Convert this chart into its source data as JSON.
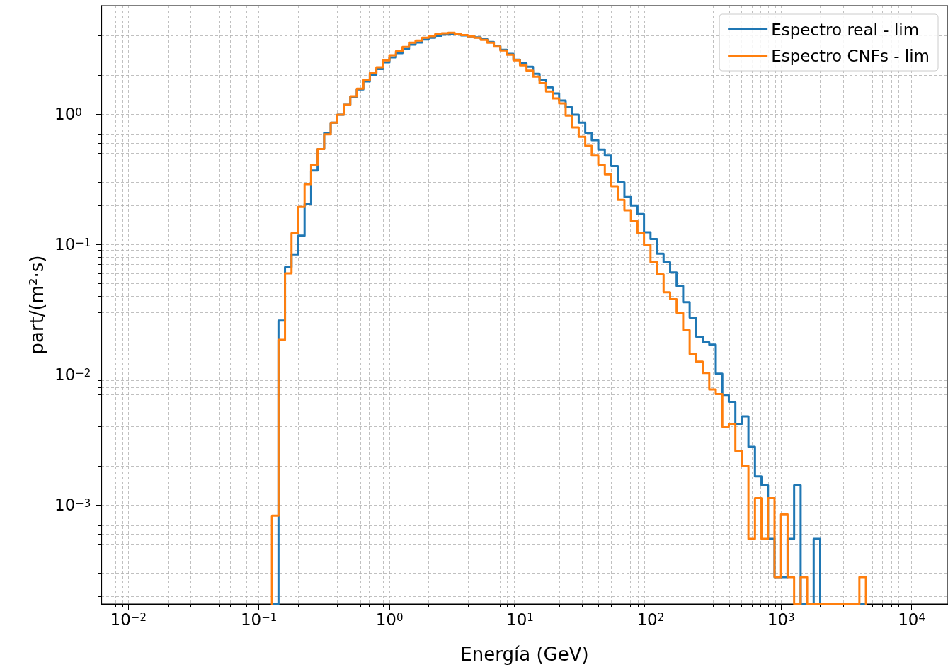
{
  "chart_data": {
    "type": "histogram",
    "xlabel": "Energía (GeV)",
    "ylabel": "part/(m²·s)",
    "bins": [
      0.1259,
      0.1413,
      0.1585,
      0.1778,
      0.1995,
      0.2239,
      0.2512,
      0.2818,
      0.3162,
      0.3548,
      0.3981,
      0.4467,
      0.5012,
      0.5623,
      0.631,
      0.7079,
      0.7943,
      0.8913,
      1,
      1.122,
      1.259,
      1.413,
      1.585,
      1.778,
      1.995,
      2.239,
      2.512,
      2.818,
      3.162,
      3.548,
      3.981,
      4.467,
      5.012,
      5.623,
      6.31,
      7.079,
      7.943,
      8.913,
      10,
      11.22,
      12.59,
      14.13,
      15.85,
      17.78,
      19.95,
      22.39,
      25.12,
      28.18,
      31.62,
      35.48,
      39.81,
      44.67,
      50.12,
      56.23,
      63.1,
      70.79,
      79.43,
      89.13,
      100,
      112.2,
      125.9,
      141.3,
      158.5,
      177.8,
      199.5,
      223.9,
      251.2,
      281.8,
      316.2,
      354.8,
      398.1,
      446.7,
      501.2,
      562.3,
      631,
      707.9,
      794.3,
      891.3,
      1000,
      1122,
      1259,
      1413,
      1585,
      1778,
      1995,
      2239,
      2512,
      2818,
      3162,
      3548,
      3981,
      4467
    ],
    "series": [
      {
        "name": "Espectro real - lim",
        "color": "#1f77b4",
        "values": [
          null,
          0.026,
          0.067,
          0.084,
          0.117,
          0.204,
          0.37,
          0.54,
          0.72,
          0.86,
          0.99,
          1.18,
          1.36,
          1.55,
          1.78,
          2.01,
          2.22,
          2.5,
          2.73,
          2.94,
          3.17,
          3.42,
          3.55,
          3.74,
          3.86,
          4.0,
          4.08,
          4.14,
          4.1,
          4.02,
          3.96,
          3.88,
          3.76,
          3.58,
          3.34,
          3.12,
          2.9,
          2.62,
          2.45,
          2.31,
          2.04,
          1.82,
          1.61,
          1.44,
          1.27,
          1.13,
          0.99,
          0.86,
          0.72,
          0.63,
          0.535,
          0.48,
          0.4,
          0.3,
          0.231,
          0.199,
          0.171,
          0.124,
          0.11,
          0.085,
          0.073,
          0.061,
          0.048,
          0.036,
          0.0275,
          0.0196,
          0.0178,
          0.017,
          0.0102,
          0.007,
          0.0062,
          0.0042,
          0.0048,
          0.0028,
          0.00166,
          0.00142,
          0.00055,
          0.00028,
          0.00028,
          0.00055,
          0.00142,
          null,
          null,
          0.00055,
          null,
          null,
          null,
          null,
          null,
          null,
          null
        ]
      },
      {
        "name": "Espectro CNFs - lim",
        "color": "#ff7f0e",
        "values": [
          0.00083,
          0.0185,
          0.06,
          0.122,
          0.194,
          0.29,
          0.41,
          0.54,
          0.7,
          0.86,
          0.99,
          1.18,
          1.37,
          1.57,
          1.82,
          2.07,
          2.29,
          2.59,
          2.83,
          3.04,
          3.28,
          3.54,
          3.67,
          3.86,
          3.97,
          4.11,
          4.17,
          4.22,
          4.14,
          4.04,
          3.96,
          3.86,
          3.72,
          3.54,
          3.3,
          3.08,
          2.86,
          2.59,
          2.37,
          2.16,
          1.94,
          1.73,
          1.49,
          1.32,
          1.21,
          0.975,
          0.79,
          0.67,
          0.57,
          0.48,
          0.41,
          0.345,
          0.28,
          0.22,
          0.183,
          0.151,
          0.123,
          0.099,
          0.073,
          0.059,
          0.043,
          0.038,
          0.03,
          0.022,
          0.0144,
          0.0126,
          0.0103,
          0.0077,
          0.0071,
          0.004,
          0.0042,
          0.0026,
          0.002,
          0.00055,
          0.00113,
          0.00055,
          0.00113,
          0.00028,
          0.00085,
          0.00028,
          null,
          0.00028,
          null,
          null,
          null,
          null,
          null,
          null,
          null,
          null,
          0.00028
        ]
      }
    ],
    "log": "xy",
    "xlim": [
      0.0062,
      19000
    ],
    "ylim": [
      0.000174,
      6.8
    ],
    "xticks": [
      {
        "value": 0.01,
        "label": "10$^{−2}$"
      },
      {
        "value": 0.1,
        "label": "10$^{−1}$"
      },
      {
        "value": 1,
        "label": "10$^{0}$"
      },
      {
        "value": 10,
        "label": "10$^{1}$"
      },
      {
        "value": 100,
        "label": "10$^{2}$"
      },
      {
        "value": 1000,
        "label": "10$^{3}$"
      },
      {
        "value": 10000,
        "label": "10$^{4}$"
      }
    ],
    "yticks": [
      {
        "value": 0.001,
        "label": "10$^{−3}$"
      },
      {
        "value": 0.01,
        "label": "10$^{−2}$"
      },
      {
        "value": 0.1,
        "label": "10$^{−1}$"
      },
      {
        "value": 1,
        "label": "10$^{0}$"
      }
    ],
    "grid": true,
    "legend": "top right",
    "line_style": "solid"
  }
}
